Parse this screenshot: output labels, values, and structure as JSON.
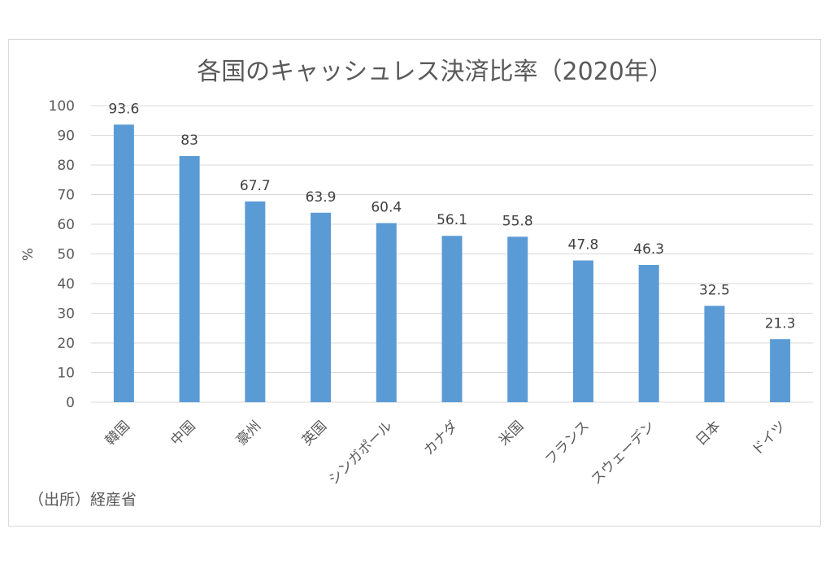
{
  "chart_data": {
    "type": "bar",
    "title": "各国のキャッシュレス決済比率（2020年）",
    "ylabel": "%",
    "xlabel": "",
    "ylim": [
      0,
      100
    ],
    "yticks": [
      0,
      10,
      20,
      30,
      40,
      50,
      60,
      70,
      80,
      90,
      100
    ],
    "grid": true,
    "categories": [
      "韓国",
      "中国",
      "豪州",
      "英国",
      "シンガポール",
      "カナダ",
      "米国",
      "フランス",
      "スウェーデン",
      "日本",
      "ドイツ"
    ],
    "values": [
      93.6,
      83,
      67.7,
      63.9,
      60.4,
      56.1,
      55.8,
      47.8,
      46.3,
      32.5,
      21.3
    ],
    "value_labels": [
      "93.6",
      "83",
      "67.7",
      "63.9",
      "60.4",
      "56.1",
      "55.8",
      "47.8",
      "46.3",
      "32.5",
      "21.3"
    ],
    "bar_color": "#5b9bd5",
    "source_note": "（出所）経産省"
  }
}
